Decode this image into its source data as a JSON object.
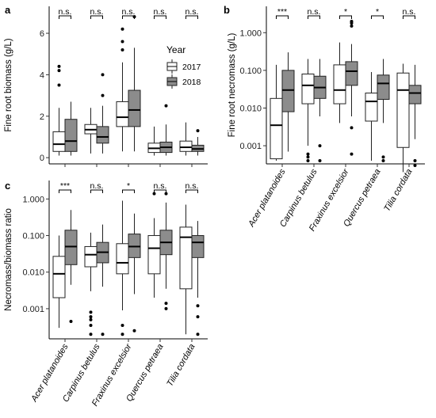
{
  "chart_data": [
    {
      "type": "box",
      "panel": "a",
      "ylabel": "Fine root biomass (g/L)",
      "scale": "linear",
      "ylim": [
        -0.3,
        7.3
      ],
      "yticks": [
        0,
        2,
        4,
        6
      ],
      "ytick_labels": [
        "0",
        "2",
        "4",
        "6"
      ],
      "show_xlabels": false,
      "categories": [
        "Acer platanoides",
        "Carpinus betulus",
        "Fraxinus excelsior",
        "Quercus petraea",
        "Tilia cordata"
      ],
      "significance": [
        "n.s.",
        "n.s.",
        "n.s.",
        "n.s.",
        "n.s."
      ],
      "legend": {
        "title": "Year",
        "entries": [
          "2017",
          "2018"
        ],
        "colors": [
          "#ffffff",
          "#8c8c8c"
        ]
      },
      "series": [
        {
          "name": "2017",
          "boxes": [
            {
              "min": 0.1,
              "q1": 0.3,
              "median": 0.65,
              "q3": 1.25,
              "max": 2.4,
              "outliers": [
                3.5,
                4.2,
                4.4
              ]
            },
            {
              "min": 0.2,
              "q1": 1.15,
              "median": 1.35,
              "q3": 1.6,
              "max": 2.4,
              "outliers": []
            },
            {
              "min": 0.3,
              "q1": 1.5,
              "median": 1.95,
              "q3": 2.7,
              "max": 4.6,
              "outliers": [
                5.2,
                5.6,
                6.2
              ]
            },
            {
              "min": 0.1,
              "q1": 0.25,
              "median": 0.45,
              "q3": 0.7,
              "max": 1.5,
              "outliers": []
            },
            {
              "min": 0.1,
              "q1": 0.3,
              "median": 0.5,
              "q3": 0.8,
              "max": 1.7,
              "outliers": []
            }
          ]
        },
        {
          "name": "2018",
          "boxes": [
            {
              "min": 0.1,
              "q1": 0.3,
              "median": 0.8,
              "q3": 1.85,
              "max": 2.7,
              "outliers": []
            },
            {
              "min": 0.2,
              "q1": 0.7,
              "median": 1.0,
              "q3": 1.5,
              "max": 2.5,
              "outliers": [
                3.0,
                4.0
              ]
            },
            {
              "min": 0.3,
              "q1": 1.5,
              "median": 2.3,
              "q3": 3.25,
              "max": 5.3,
              "outliers": [
                6.8
              ]
            },
            {
              "min": 0.1,
              "q1": 0.25,
              "median": 0.5,
              "q3": 0.75,
              "max": 1.6,
              "outliers": [
                2.5
              ]
            },
            {
              "min": 0.1,
              "q1": 0.3,
              "median": 0.42,
              "q3": 0.6,
              "max": 1.0,
              "outliers": [
                1.3
              ]
            }
          ]
        }
      ]
    },
    {
      "type": "box",
      "panel": "b",
      "ylabel": "Fine root necromass (g/L)",
      "scale": "log10",
      "ylim": [
        0.00033,
        5.0
      ],
      "yticks": [
        0.001,
        0.01,
        0.1,
        1.0
      ],
      "ytick_labels": [
        "0.001",
        "0.010",
        "0.100",
        "1.000"
      ],
      "show_xlabels": true,
      "categories": [
        "Acer platanoides",
        "Carpinus betulus",
        "Fraxinus excelsior",
        "Quercus petraea",
        "Tilia cordata"
      ],
      "significance": [
        "***",
        "n.s.",
        "*",
        "*",
        "n.s."
      ],
      "series": [
        {
          "name": "2017",
          "boxes": [
            {
              "min": 0.0004,
              "q1": 0.00045,
              "median": 0.0035,
              "q3": 0.018,
              "max": 0.14,
              "outliers": []
            },
            {
              "min": 0.001,
              "q1": 0.013,
              "median": 0.04,
              "q3": 0.08,
              "max": 0.2,
              "outliers": [
                0.0004,
                0.0005,
                0.0006
              ]
            },
            {
              "min": 0.004,
              "q1": 0.013,
              "median": 0.03,
              "q3": 0.14,
              "max": 0.55,
              "outliers": []
            },
            {
              "min": 0.0004,
              "q1": 0.0045,
              "median": 0.015,
              "q3": 0.025,
              "max": 0.09,
              "outliers": []
            },
            {
              "min": 0.0002,
              "q1": 0.0009,
              "median": 0.03,
              "q3": 0.085,
              "max": 0.15,
              "outliers": []
            }
          ]
        },
        {
          "name": "2018",
          "boxes": [
            {
              "min": 0.0007,
              "q1": 0.008,
              "median": 0.03,
              "q3": 0.1,
              "max": 0.3,
              "outliers": []
            },
            {
              "min": 0.006,
              "q1": 0.018,
              "median": 0.035,
              "q3": 0.07,
              "max": 0.2,
              "outliers": [
                0.0004,
                0.001
              ]
            },
            {
              "min": 0.006,
              "q1": 0.04,
              "median": 0.095,
              "q3": 0.17,
              "max": 0.5,
              "outliers": [
                0.0006,
                0.003,
                1.5,
                1.8,
                2.0
              ]
            },
            {
              "min": 0.004,
              "q1": 0.017,
              "median": 0.045,
              "q3": 0.075,
              "max": 0.2,
              "outliers": [
                0.0004,
                0.0005
              ]
            },
            {
              "min": 0.0015,
              "q1": 0.013,
              "median": 0.025,
              "q3": 0.04,
              "max": 0.14,
              "outliers": [
                0.0003,
                0.0004
              ]
            }
          ]
        }
      ]
    },
    {
      "type": "box",
      "panel": "c",
      "ylabel": "Necromass/biomass ratio",
      "scale": "log10",
      "ylim": [
        0.00015,
        3.2
      ],
      "yticks": [
        0.001,
        0.01,
        0.1,
        1.0
      ],
      "ytick_labels": [
        "0.001",
        "0.010",
        "0.100",
        "1.000"
      ],
      "show_xlabels": true,
      "categories": [
        "Acer platanoides",
        "Carpinus betulus",
        "Fraxinus excelsior",
        "Quercus petraea",
        "Tilia cordata"
      ],
      "significance": [
        "***",
        "n.s.",
        "*",
        "n.s.",
        "n.s."
      ],
      "series": [
        {
          "name": "2017",
          "boxes": [
            {
              "min": 0.0003,
              "q1": 0.002,
              "median": 0.009,
              "q3": 0.027,
              "max": 0.1,
              "outliers": []
            },
            {
              "min": 0.003,
              "q1": 0.014,
              "median": 0.03,
              "q3": 0.05,
              "max": 0.12,
              "outliers": [
                0.0002,
                0.00035,
                0.0005,
                0.0006,
                0.0008
              ]
            },
            {
              "min": 0.0009,
              "q1": 0.009,
              "median": 0.018,
              "q3": 0.06,
              "max": 0.9,
              "outliers": [
                0.0002,
                0.00035
              ]
            },
            {
              "min": 0.002,
              "q1": 0.009,
              "median": 0.045,
              "q3": 0.1,
              "max": 0.3,
              "outliers": [
                1.4
              ]
            },
            {
              "min": 0.0002,
              "q1": 0.0035,
              "median": 0.09,
              "q3": 0.17,
              "max": 0.7,
              "outliers": []
            }
          ]
        },
        {
          "name": "2018",
          "boxes": [
            {
              "min": 0.0045,
              "q1": 0.016,
              "median": 0.05,
              "q3": 0.14,
              "max": 0.5,
              "outliers": [
                0.00045
              ]
            },
            {
              "min": 0.004,
              "q1": 0.018,
              "median": 0.035,
              "q3": 0.065,
              "max": 0.2,
              "outliers": [
                0.0002
              ]
            },
            {
              "min": 0.0025,
              "q1": 0.025,
              "median": 0.05,
              "q3": 0.11,
              "max": 0.4,
              "outliers": [
                0.00025
              ]
            },
            {
              "min": 0.0035,
              "q1": 0.03,
              "median": 0.065,
              "q3": 0.14,
              "max": 0.8,
              "outliers": [
                0.001,
                0.0014,
                1.4
              ]
            },
            {
              "min": 0.002,
              "q1": 0.025,
              "median": 0.065,
              "q3": 0.1,
              "max": 0.25,
              "outliers": [
                0.0002,
                0.0006,
                0.0012
              ]
            }
          ]
        }
      ]
    }
  ]
}
